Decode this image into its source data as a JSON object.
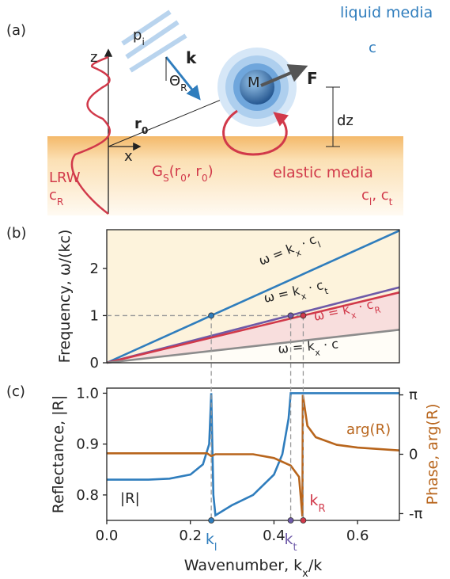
{
  "diagram": {
    "label": "(a)",
    "liquid_media": "liquid media",
    "c": "c",
    "z": "z",
    "p_i": [
      "p",
      "i"
    ],
    "k": "k",
    "theta": [
      "Θ",
      "R"
    ],
    "m": "M",
    "f": "F",
    "r0": [
      "r",
      "0"
    ],
    "dz": "dz",
    "x": "x",
    "lrw": "LRW",
    "c_r": [
      "c",
      "R"
    ],
    "green": [
      "G",
      "S",
      "(r",
      "0",
      ", r",
      "0",
      ")"
    ],
    "elastic_media": "elastic media",
    "c_lt": [
      "c",
      "l",
      ", c",
      "t"
    ]
  },
  "chart_data": [
    {
      "type": "line",
      "panel_label": "(b)",
      "ylabel": "Frequency, ω/(kc)",
      "x": [
        0,
        0.7
      ],
      "xlim": [
        0,
        0.7
      ],
      "ylim": [
        0,
        2.82
      ],
      "yticks": [
        0,
        1,
        2
      ],
      "series": [
        {
          "label": [
            "ω = k",
            "x",
            " · c",
            "l"
          ],
          "color": "#2f7dbd",
          "values": [
            0,
            2.8
          ]
        },
        {
          "label": [
            "ω = k",
            "x",
            " · c",
            "t"
          ],
          "color": "#6e5aa8",
          "values": [
            0,
            1.6
          ]
        },
        {
          "label": [
            "ω = k",
            "x",
            " · c",
            "R"
          ],
          "color": "#d1394a",
          "values": [
            0,
            1.49
          ]
        },
        {
          "label": [
            "ω = k",
            "x",
            " · c"
          ],
          "color": "#8c8c8c",
          "values": [
            0,
            0.7
          ]
        }
      ],
      "points": {
        "x": [
          0.25,
          0.44,
          0.47
        ],
        "values": [
          1,
          1,
          1
        ],
        "colors": [
          "#2f7dbd",
          "#6e5aa8",
          "#d1394a"
        ]
      }
    },
    {
      "type": "line",
      "panel_label": "(c)",
      "ylabel": "Reflectance, |R|",
      "y2label": "Phase, arg(R)",
      "xlabel": [
        "Wavenumber, k",
        "x",
        "/k"
      ],
      "xlim": [
        0,
        0.7
      ],
      "xticks": [
        {
          "value": 0,
          "label": "0.0"
        },
        {
          "value": 0.2,
          "label": "0.2"
        },
        {
          "value": 0.4,
          "label": "0.4"
        },
        {
          "value": 0.6,
          "label": "0.6"
        }
      ],
      "ylim": [
        0.75,
        1.01
      ],
      "yticks": [
        0.8,
        0.9,
        {
          "value": 1,
          "label": "1.0"
        }
      ],
      "y2lim": [
        -3.5,
        3.5
      ],
      "y2ticks": [
        {
          "value": -3.1416,
          "label": "-π"
        },
        0,
        {
          "value": 3.1416,
          "label": "π"
        }
      ],
      "series": [
        {
          "name": "|R|",
          "color": "#2f7dbd",
          "x": [
            0,
            0.05,
            0.1,
            0.15,
            0.2,
            0.23,
            0.245,
            0.25,
            0.255,
            0.26,
            0.27,
            0.3,
            0.35,
            0.4,
            0.42,
            0.435,
            0.44,
            0.45,
            0.5,
            0.6,
            0.7
          ],
          "values": [
            0.83,
            0.83,
            0.83,
            0.832,
            0.84,
            0.86,
            0.9,
            1.0,
            0.8,
            0.76,
            0.765,
            0.78,
            0.8,
            0.84,
            0.88,
            0.95,
            1.0,
            1.0,
            1.0,
            1.0,
            1.0
          ]
        },
        {
          "name": "arg(R)",
          "color": "#b8651c",
          "axis": "y2",
          "x": [
            0,
            0.1,
            0.2,
            0.24,
            0.25,
            0.26,
            0.3,
            0.35,
            0.4,
            0.44,
            0.46,
            0.468,
            0.469,
            0.48,
            0.5,
            0.55,
            0.6,
            0.7
          ],
          "values": [
            0.05,
            0.05,
            0.05,
            0.05,
            -0.1,
            0,
            0,
            0,
            -0.2,
            -0.6,
            -1.2,
            -3.3,
            3.14,
            1.5,
            0.9,
            0.5,
            0.35,
            0.2
          ]
        }
      ],
      "markers": [
        {
          "x": 0.25,
          "label": [
            "k",
            "l"
          ],
          "color": "#2f7dbd"
        },
        {
          "x": 0.44,
          "label": [
            "k",
            "t"
          ],
          "color": "#6e5aa8"
        },
        {
          "x": 0.47,
          "label": [
            "k",
            "R"
          ],
          "color": "#d1394a"
        }
      ]
    }
  ]
}
